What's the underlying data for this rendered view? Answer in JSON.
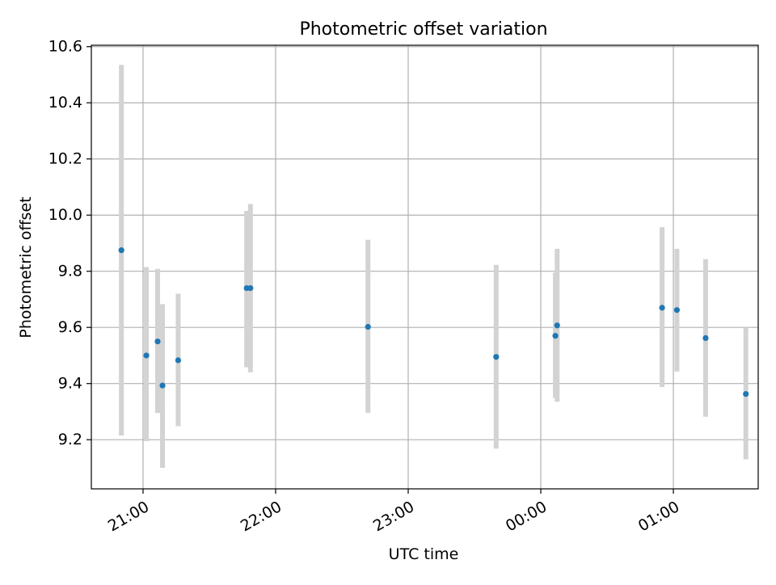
{
  "chart_data": {
    "type": "scatter",
    "title": "Photometric offset variation",
    "xlabel": "UTC time",
    "ylabel": "Photometric offset",
    "x_tick_labels": [
      "21:00",
      "22:00",
      "23:00",
      "00:00",
      "01:00"
    ],
    "x_tick_values_minutes": [
      0,
      60,
      120,
      180,
      240
    ],
    "y_ticks": [
      "9.2",
      "9.4",
      "9.6",
      "9.8",
      "10.0",
      "10.2",
      "10.4",
      "10.6"
    ],
    "xlim_minutes": [
      -23.4,
      278.4
    ],
    "ylim": [
      9.025,
      10.605
    ],
    "grid": true,
    "marker_color": "#1f77b4",
    "errorbar_color": "#d3d3d3",
    "points": [
      {
        "t": -9.8,
        "y": 9.875,
        "err_low": 9.215,
        "err_high": 10.535
      },
      {
        "t": 1.5,
        "y": 9.5,
        "err_low": 9.195,
        "err_high": 9.815
      },
      {
        "t": 6.6,
        "y": 9.55,
        "err_low": 9.295,
        "err_high": 9.808
      },
      {
        "t": 8.8,
        "y": 9.393,
        "err_low": 9.1,
        "err_high": 9.683
      },
      {
        "t": 15.9,
        "y": 9.483,
        "err_low": 9.248,
        "err_high": 9.72
      },
      {
        "t": 46.9,
        "y": 9.74,
        "err_low": 9.458,
        "err_high": 10.015
      },
      {
        "t": 48.6,
        "y": 9.74,
        "err_low": 9.44,
        "err_high": 10.04
      },
      {
        "t": 101.8,
        "y": 9.602,
        "err_low": 9.295,
        "err_high": 9.912
      },
      {
        "t": 159.8,
        "y": 9.495,
        "err_low": 9.168,
        "err_high": 9.823
      },
      {
        "t": 186.6,
        "y": 9.57,
        "err_low": 9.348,
        "err_high": 9.795
      },
      {
        "t": 187.4,
        "y": 9.607,
        "err_low": 9.335,
        "err_high": 9.88
      },
      {
        "t": 234.9,
        "y": 9.67,
        "err_low": 9.388,
        "err_high": 9.957
      },
      {
        "t": 241.6,
        "y": 9.662,
        "err_low": 9.443,
        "err_high": 9.88
      },
      {
        "t": 254.6,
        "y": 9.562,
        "err_low": 9.282,
        "err_high": 9.843
      },
      {
        "t": 272.8,
        "y": 9.363,
        "err_low": 9.13,
        "err_high": 9.6
      }
    ]
  }
}
